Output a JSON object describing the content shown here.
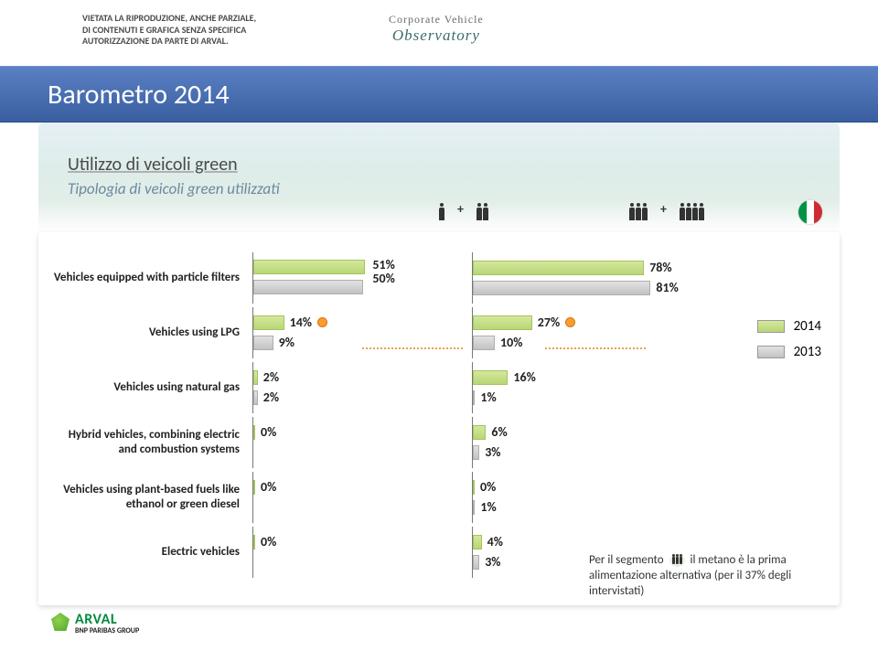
{
  "disclaimer": "VIETATA LA RIPRODUZIONE, ANCHE PARZIALE,\nDI CONTENUTI E GRAFICA SENZA SPECIFICA\nAUTORIZZAZIONE DA PARTE DI ARVAL.",
  "cvo": {
    "top": "Corporate Vehicle",
    "bottom": "Observatory"
  },
  "title": "Barometro 2014",
  "subtitle1": "Utilizzo di veicoli green",
  "subtitle2": "Tipologia di veicoli green utilizzati",
  "legend": {
    "y2014": "2014",
    "y2013": "2013"
  },
  "chart": {
    "type": "grouped-bar-horizontal",
    "bar_colors": {
      "2014": "#b8d676",
      "2013": "#c2c2c2"
    },
    "axis_color": "#777777",
    "xlim_pct": 100,
    "rows": [
      {
        "label": "Vehicles equipped with particle filters",
        "left": {
          "v2014": 51,
          "v2013": 50,
          "t2014": "51%",
          "t2013": "50%",
          "stacked": true
        },
        "right": {
          "v2014": 78,
          "v2013": 81,
          "t2014": "78%",
          "t2013": "81%"
        }
      },
      {
        "label": "Vehicles using LPG",
        "left": {
          "v2014": 14,
          "v2013": 9,
          "t2014": "14%",
          "t2013": "9%",
          "dot": true
        },
        "right": {
          "v2014": 27,
          "v2013": 10,
          "t2014": "27%",
          "t2013": "10%",
          "dot": true
        }
      },
      {
        "label": "Vehicles using natural gas",
        "left": {
          "v2014": 2,
          "v2013": 2,
          "t2014": "2%",
          "t2013": "2%"
        },
        "right": {
          "v2014": 16,
          "v2013": 1,
          "t2014": "16%",
          "t2013": "1%"
        }
      },
      {
        "label": "Hybrid vehicles, combining electric and combustion systems",
        "left": {
          "v2014": 0,
          "v2013": null,
          "t2014": "0%",
          "t2013": ""
        },
        "right": {
          "v2014": 6,
          "v2013": 3,
          "t2014": "6%",
          "t2013": "3%"
        }
      },
      {
        "label": "Vehicles using plant-based fuels like ethanol or green diesel",
        "left": {
          "v2014": 0,
          "v2013": null,
          "t2014": "0%",
          "t2013": ""
        },
        "right": {
          "v2014": 0,
          "v2013": 1,
          "t2014": "0%",
          "t2013": "1%"
        }
      },
      {
        "label": "Electric vehicles",
        "left": {
          "v2014": 0,
          "v2013": null,
          "t2014": "0%",
          "t2013": ""
        },
        "right": {
          "v2014": 4,
          "v2013": 3,
          "t2014": "4%",
          "t2013": "3%"
        }
      }
    ]
  },
  "footnote": {
    "pre": "Per il segmento",
    "post": "il metano è la prima alimentazione alternativa (per il 37% degli intervistati)"
  },
  "arval": {
    "brand": "ARVAL",
    "sub": "BNP PARIBAS GROUP"
  },
  "colors": {
    "title_band_top": "#5a80c4",
    "title_band_bot": "#3a5fa0",
    "accent_dot": "#ff9a2e",
    "dash": "#e7a24a"
  }
}
